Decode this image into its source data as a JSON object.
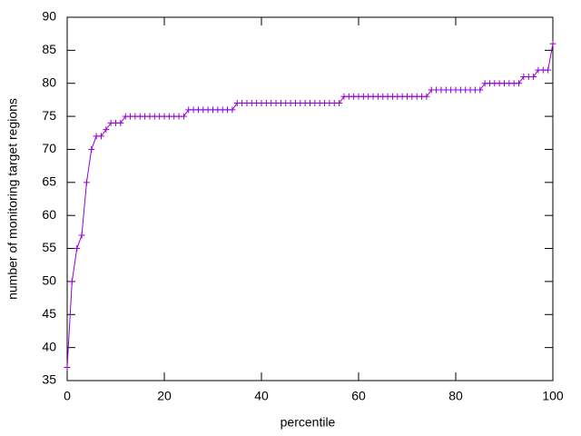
{
  "chart_data": {
    "type": "line",
    "x_label": "percentile",
    "y_label": "number of monitoring target regions",
    "x": [
      0,
      1,
      2,
      3,
      4,
      5,
      6,
      7,
      8,
      9,
      10,
      11,
      12,
      13,
      14,
      15,
      16,
      17,
      18,
      19,
      20,
      21,
      22,
      23,
      24,
      25,
      26,
      27,
      28,
      29,
      30,
      31,
      32,
      33,
      34,
      35,
      36,
      37,
      38,
      39,
      40,
      41,
      42,
      43,
      44,
      45,
      46,
      47,
      48,
      49,
      50,
      51,
      52,
      53,
      54,
      55,
      56,
      57,
      58,
      59,
      60,
      61,
      62,
      63,
      64,
      65,
      66,
      67,
      68,
      69,
      70,
      71,
      72,
      73,
      74,
      75,
      76,
      77,
      78,
      79,
      80,
      81,
      82,
      83,
      84,
      85,
      86,
      87,
      88,
      89,
      90,
      91,
      92,
      93,
      94,
      95,
      96,
      97,
      98,
      99,
      100
    ],
    "series": [
      {
        "color": "#9400d3",
        "values": [
          37,
          50,
          55,
          57,
          65,
          70,
          72,
          72,
          73,
          74,
          74,
          74,
          75,
          75,
          75,
          75,
          75,
          75,
          75,
          75,
          75,
          75,
          75,
          75,
          75,
          76,
          76,
          76,
          76,
          76,
          76,
          76,
          76,
          76,
          76,
          77,
          77,
          77,
          77,
          77,
          77,
          77,
          77,
          77,
          77,
          77,
          77,
          77,
          77,
          77,
          77,
          77,
          77,
          77,
          77,
          77,
          77,
          78,
          78,
          78,
          78,
          78,
          78,
          78,
          78,
          78,
          78,
          78,
          78,
          78,
          78,
          78,
          78,
          78,
          78,
          79,
          79,
          79,
          79,
          79,
          79,
          79,
          79,
          79,
          79,
          79,
          80,
          80,
          80,
          80,
          80,
          80,
          80,
          80,
          81,
          81,
          81,
          82,
          82,
          82,
          86
        ]
      }
    ],
    "xlim": [
      0,
      100
    ],
    "ylim": [
      35,
      90
    ],
    "xticks": [
      0,
      20,
      40,
      60,
      80,
      100
    ],
    "yticks": [
      35,
      40,
      45,
      50,
      55,
      60,
      65,
      70,
      75,
      80,
      85,
      90
    ],
    "markers": true
  }
}
